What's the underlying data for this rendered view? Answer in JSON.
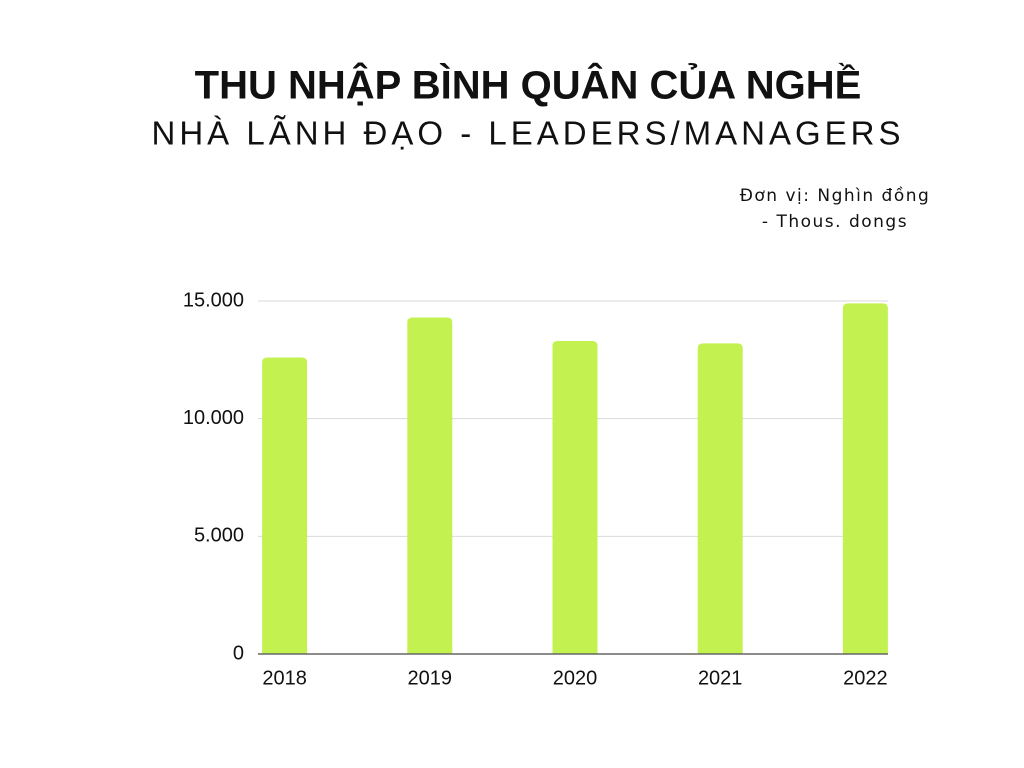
{
  "chart_data": {
    "type": "bar",
    "title": "THU NHẬP BÌNH QUÂN CỦA NGHỀ",
    "subtitle": "NHÀ LÃNH ĐẠO - LEADERS/MANAGERS",
    "note": [
      "Đơn vị: Nghìn đồng",
      "- Thous. dongs"
    ],
    "categories": [
      "2018",
      "2019",
      "2020",
      "2021",
      "2022"
    ],
    "values": [
      12600,
      14300,
      13300,
      13200,
      14900
    ],
    "color": "#c3f250",
    "ylim": [
      0,
      15000
    ],
    "yticks": [
      0,
      {
        "value": 5000,
        "label": "5.000"
      },
      {
        "value": 10000,
        "label": "10.000"
      },
      {
        "value": 15000,
        "label": "15.000"
      }
    ],
    "grid": true
  }
}
